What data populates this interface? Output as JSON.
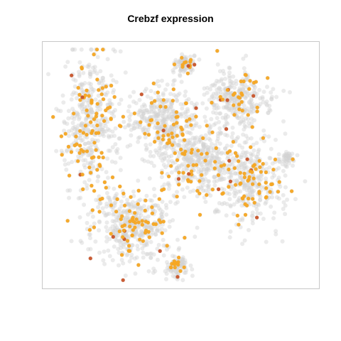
{
  "chart_data": {
    "type": "scatter",
    "title": "Crebzf expression",
    "xlabel": "",
    "ylabel": "",
    "axes_visible": false,
    "legend": "none",
    "colors": {
      "background_cells": "#d3d3d3",
      "expressing_cells": "#f5a623",
      "high_expressing_cells": "#c8542a",
      "panel_border": "#c8c8c8"
    },
    "clusters": [
      {
        "center": [
          -1.05,
          0.4
        ],
        "spread": [
          0.3,
          0.55
        ],
        "count": 460,
        "expr_fraction": 0.16
      },
      {
        "center": [
          -0.55,
          -0.55
        ],
        "spread": [
          0.45,
          0.3
        ],
        "count": 460,
        "expr_fraction": 0.16
      },
      {
        "center": [
          -0.2,
          0.4
        ],
        "spread": [
          0.35,
          0.25
        ],
        "count": 380,
        "expr_fraction": 0.14
      },
      {
        "center": [
          0.2,
          0.05
        ],
        "spread": [
          0.4,
          0.28
        ],
        "count": 420,
        "expr_fraction": 0.17
      },
      {
        "center": [
          0.65,
          0.6
        ],
        "spread": [
          0.35,
          0.22
        ],
        "count": 320,
        "expr_fraction": 0.12
      },
      {
        "center": [
          0.8,
          -0.15
        ],
        "spread": [
          0.4,
          0.35
        ],
        "count": 380,
        "expr_fraction": 0.17
      },
      {
        "center": [
          0.05,
          0.92
        ],
        "spread": [
          0.1,
          0.06
        ],
        "count": 100,
        "expr_fraction": 0.12
      },
      {
        "center": [
          -0.05,
          -0.92
        ],
        "spread": [
          0.13,
          0.08
        ],
        "count": 100,
        "expr_fraction": 0.15
      },
      {
        "center": [
          1.25,
          0.05
        ],
        "spread": [
          0.08,
          0.06
        ],
        "count": 40,
        "expr_fraction": 0.05
      }
    ],
    "xlim": [
      -1.6,
      1.6
    ],
    "ylim": [
      -1.1,
      1.1
    ]
  }
}
